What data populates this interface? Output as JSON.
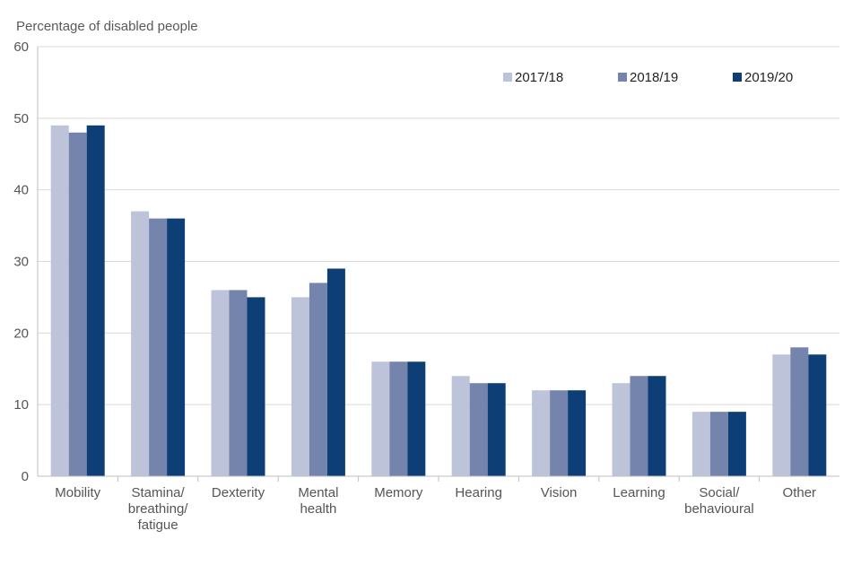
{
  "chart_data": {
    "type": "bar",
    "title": "",
    "ylabel": "Percentage of disabled people",
    "xlabel": "",
    "ylim": [
      0,
      60
    ],
    "yticks": [
      0,
      10,
      20,
      30,
      40,
      50,
      60
    ],
    "grid": true,
    "legend_position": "top-right",
    "categories": [
      [
        "Mobility"
      ],
      [
        "Stamina/",
        "breathing/",
        "fatigue"
      ],
      [
        "Dexterity"
      ],
      [
        "Mental",
        "health"
      ],
      [
        "Memory"
      ],
      [
        "Hearing"
      ],
      [
        "Vision"
      ],
      [
        "Learning"
      ],
      [
        "Social/",
        "behavioural"
      ],
      [
        "Other"
      ]
    ],
    "series": [
      {
        "name": "2017/18",
        "color": "#bdc4d9",
        "values": [
          49,
          37,
          26,
          25,
          16,
          14,
          12,
          13,
          9,
          17
        ]
      },
      {
        "name": "2018/19",
        "color": "#7484ad",
        "values": [
          48,
          36,
          26,
          27,
          16,
          13,
          12,
          14,
          9,
          18
        ]
      },
      {
        "name": "2019/20",
        "color": "#0d3f76",
        "values": [
          49,
          36,
          25,
          29,
          16,
          13,
          12,
          14,
          9,
          17
        ]
      }
    ]
  }
}
